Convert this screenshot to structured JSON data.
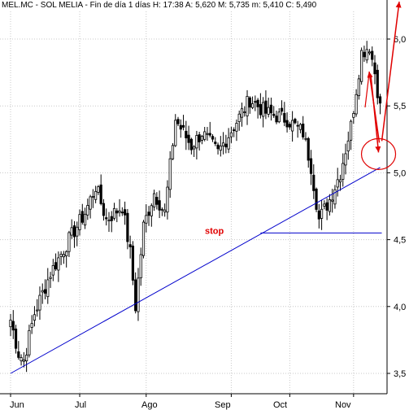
{
  "header": {
    "symbol": "MEL.MC",
    "name": "SOL MELIA",
    "period": "Fin de día 1 días",
    "hour_label": "H:",
    "hour": "17:38",
    "open_label": "A:",
    "open": "5,620",
    "high_label": "M:",
    "high": "5,735",
    "low_label": "m:",
    "low": "5,410",
    "close_label": "C:",
    "close": "5,490"
  },
  "chart_data": {
    "type": "candlestick",
    "title": "",
    "ylim": [
      3.45,
      6.35
    ],
    "y_ticks": [
      {
        "value": 3.5,
        "label": "3,5"
      },
      {
        "value": 4.0,
        "label": "4,0"
      },
      {
        "value": 4.5,
        "label": "4,5"
      },
      {
        "value": 5.0,
        "label": "5,0"
      },
      {
        "value": 5.5,
        "label": "5,5"
      },
      {
        "value": 6.0,
        "label": "6,0"
      }
    ],
    "x_ticks": [
      "Jun",
      "Jul",
      "Ago",
      "Sep",
      "Oct",
      "Nov"
    ],
    "grid": true,
    "ohlc_anchors": [
      {
        "t": 0,
        "c": 3.9
      },
      {
        "t": 3,
        "c": 3.65
      },
      {
        "t": 5,
        "c": 3.6
      },
      {
        "t": 9,
        "c": 3.95
      },
      {
        "t": 15,
        "c": 4.25
      },
      {
        "t": 22,
        "c": 4.5
      },
      {
        "t": 28,
        "c": 4.7
      },
      {
        "t": 32,
        "c": 4.9
      },
      {
        "t": 36,
        "c": 4.65
      },
      {
        "t": 42,
        "c": 4.75
      },
      {
        "t": 45,
        "c": 4.4
      },
      {
        "t": 47,
        "c": 4.0
      },
      {
        "t": 50,
        "c": 4.6
      },
      {
        "t": 54,
        "c": 4.85
      },
      {
        "t": 58,
        "c": 4.7
      },
      {
        "t": 62,
        "c": 5.4
      },
      {
        "t": 68,
        "c": 5.2
      },
      {
        "t": 72,
        "c": 5.3
      },
      {
        "t": 78,
        "c": 5.15
      },
      {
        "t": 84,
        "c": 5.35
      },
      {
        "t": 90,
        "c": 5.55
      },
      {
        "t": 96,
        "c": 5.45
      },
      {
        "t": 104,
        "c": 5.4
      },
      {
        "t": 110,
        "c": 5.3
      },
      {
        "t": 113,
        "c": 5.05
      },
      {
        "t": 116,
        "c": 4.65
      },
      {
        "t": 120,
        "c": 4.8
      },
      {
        "t": 124,
        "c": 5.0
      },
      {
        "t": 128,
        "c": 5.35
      },
      {
        "t": 132,
        "c": 5.9
      },
      {
        "t": 135,
        "c": 5.95
      },
      {
        "t": 137,
        "c": 5.75
      },
      {
        "t": 139,
        "c": 5.49
      }
    ],
    "trendline": {
      "from": {
        "t": 0,
        "v": 3.5
      },
      "to": {
        "t": 139,
        "v": 5.04
      },
      "color": "#0000cc"
    },
    "stop_line": {
      "value": 4.55,
      "from_t": 94,
      "to_t": 139,
      "label": "stop",
      "color": "#0000cc"
    },
    "annotations": {
      "circle_center": {
        "t": 139,
        "v": 5.14
      },
      "color": "#e00000"
    }
  }
}
